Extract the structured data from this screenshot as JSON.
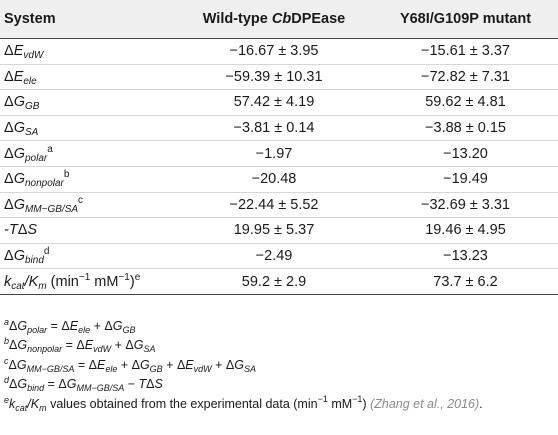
{
  "table": {
    "headers": [
      "System",
      "Wild-type ",
      "Cb",
      "DPEase",
      "Y68I/G109P mutant"
    ],
    "rows": [
      {
        "wt": "−16.67 ± 3.95",
        "mut": "−15.61 ± 3.37"
      },
      {
        "wt": "−59.39 ± 10.31",
        "mut": "−72.82 ± 7.31"
      },
      {
        "wt": "57.42 ± 4.19",
        "mut": "59.62 ± 4.81"
      },
      {
        "wt": "−3.81 ± 0.14",
        "mut": "−3.88 ± 0.15"
      },
      {
        "wt": "−1.97",
        "mut": "−13.20"
      },
      {
        "wt": "−20.48",
        "mut": "−19.49"
      },
      {
        "wt": "−22.44 ± 5.52",
        "mut": "−32.69 ± 3.31"
      },
      {
        "wt": "19.95 ± 5.37",
        "mut": "19.46 ± 4.95"
      },
      {
        "wt": "−2.49",
        "mut": "−13.23"
      },
      {
        "wt": "59.2 ± 2.9",
        "mut": "73.7 ± 6.2"
      }
    ],
    "row_labels": {
      "delta": "Δ",
      "E": "E",
      "G": "G",
      "vdw": "vdW",
      "ele": "ele",
      "gb": "GB",
      "sa": "SA",
      "polar": "polar",
      "nonpolar": "nonpolar",
      "mmgbsa": "MM−GB/SA",
      "bind": "bind",
      "neg_t": "-T",
      "s": "S",
      "k": "k",
      "cat": "cat",
      "km_slash": "/K",
      "m": "m",
      "units_open": " (min",
      "units_exp": "−1",
      "units_mid": " mM",
      "units_close": ")",
      "mark_a": "a",
      "mark_b": "b",
      "mark_c": "c",
      "mark_d": "d",
      "mark_e": "e"
    }
  },
  "notes": {
    "eq": " = ",
    "plus": " + ",
    "minus": " − ",
    "e_text_a": " values obtained from the experimental data (min",
    "e_text_b": " mM",
    "e_text_c": ") ",
    "e_cite": "(Zhang et al., 2016)",
    "e_end": "."
  }
}
